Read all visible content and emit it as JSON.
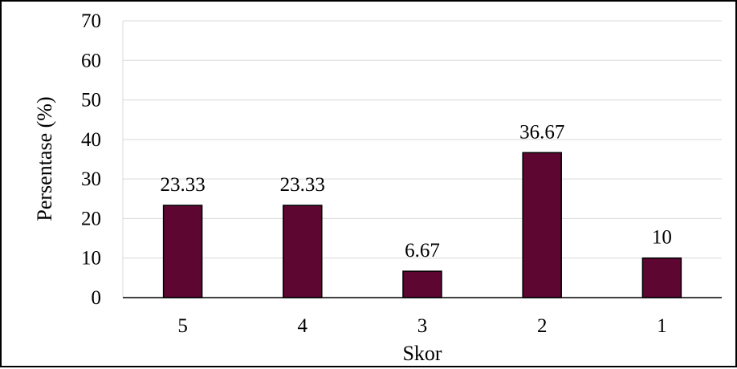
{
  "chart_data": {
    "type": "bar",
    "title": "",
    "xlabel": "Skor",
    "ylabel": "Persentase (%)",
    "categories": [
      "5",
      "4",
      "3",
      "2",
      "1"
    ],
    "values": [
      23.33,
      23.33,
      6.67,
      36.67,
      10
    ],
    "data_labels": [
      "23.33",
      "23.33",
      "6.67",
      "36.67",
      "10"
    ],
    "ylim": [
      0,
      70
    ],
    "yticks": [
      0,
      10,
      20,
      30,
      40,
      50,
      60,
      70
    ],
    "grid": true,
    "legend": "none",
    "colors": {
      "bar_fill": "#5c0631",
      "bar_stroke": "#000000",
      "grid": "#d9d9d9",
      "axis": "#000000"
    }
  }
}
